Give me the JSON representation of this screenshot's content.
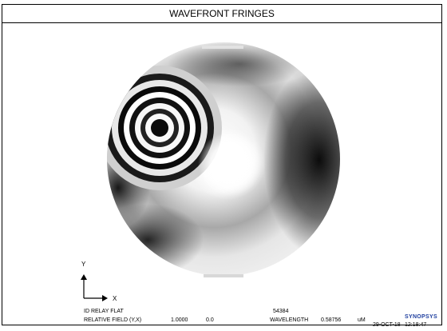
{
  "title": "WAVEFRONT FRINGES",
  "axes": {
    "y": "Y",
    "x": "X"
  },
  "footer": {
    "line1_left": "ID RELAY FLAT",
    "line1_code": "54384",
    "line2_label": "RELATIVE FIELD (Y,X)",
    "field_y": "1.0000",
    "field_x": "0.0",
    "wavelength_label": "WAVELENGTH",
    "wavelength_value": "0.58756",
    "wavelength_unit": "uM",
    "date": "29-OCT-18",
    "time": "12:18:47",
    "logo": "SYNOPSYS"
  }
}
